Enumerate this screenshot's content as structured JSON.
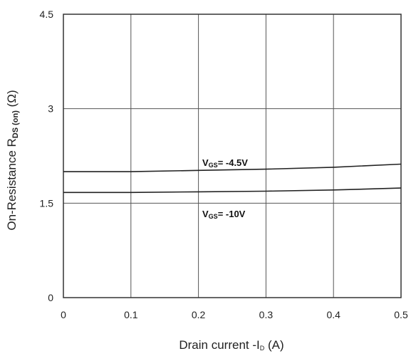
{
  "chart_data": {
    "type": "line",
    "xlabel": "Drain current -ID (A)",
    "ylabel": "On-Resistance RDS (on) (Ω)",
    "xlim": [
      0,
      0.5
    ],
    "ylim": [
      0,
      4.5
    ],
    "x_ticks": [
      "0",
      "0.1",
      "0.2",
      "0.3",
      "0.4",
      "0.5"
    ],
    "y_ticks": [
      "0",
      "1.5",
      "3",
      "4.5"
    ],
    "grid": true,
    "series": [
      {
        "name": "VGS= -4.5V",
        "x": [
          0,
          0.1,
          0.2,
          0.3,
          0.4,
          0.5
        ],
        "y": [
          2.0,
          2.0,
          2.02,
          2.04,
          2.07,
          2.12
        ]
      },
      {
        "name": "VGS= -10V",
        "x": [
          0,
          0.1,
          0.2,
          0.3,
          0.4,
          0.5
        ],
        "y": [
          1.67,
          1.67,
          1.68,
          1.69,
          1.71,
          1.74
        ]
      }
    ]
  },
  "labels": {
    "x_axis": {
      "pre": "Drain current -I",
      "sub": "D",
      "post": " (A)"
    },
    "y_axis": {
      "pre": "On-Resistance  R",
      "sub": "DS (on)",
      "post": " (Ω)"
    },
    "series_1": {
      "pre": "V",
      "sub": "GS",
      "post": "= -4.5V"
    },
    "series_2": {
      "pre": "V",
      "sub": "GS",
      "post": "= -10V"
    }
  }
}
